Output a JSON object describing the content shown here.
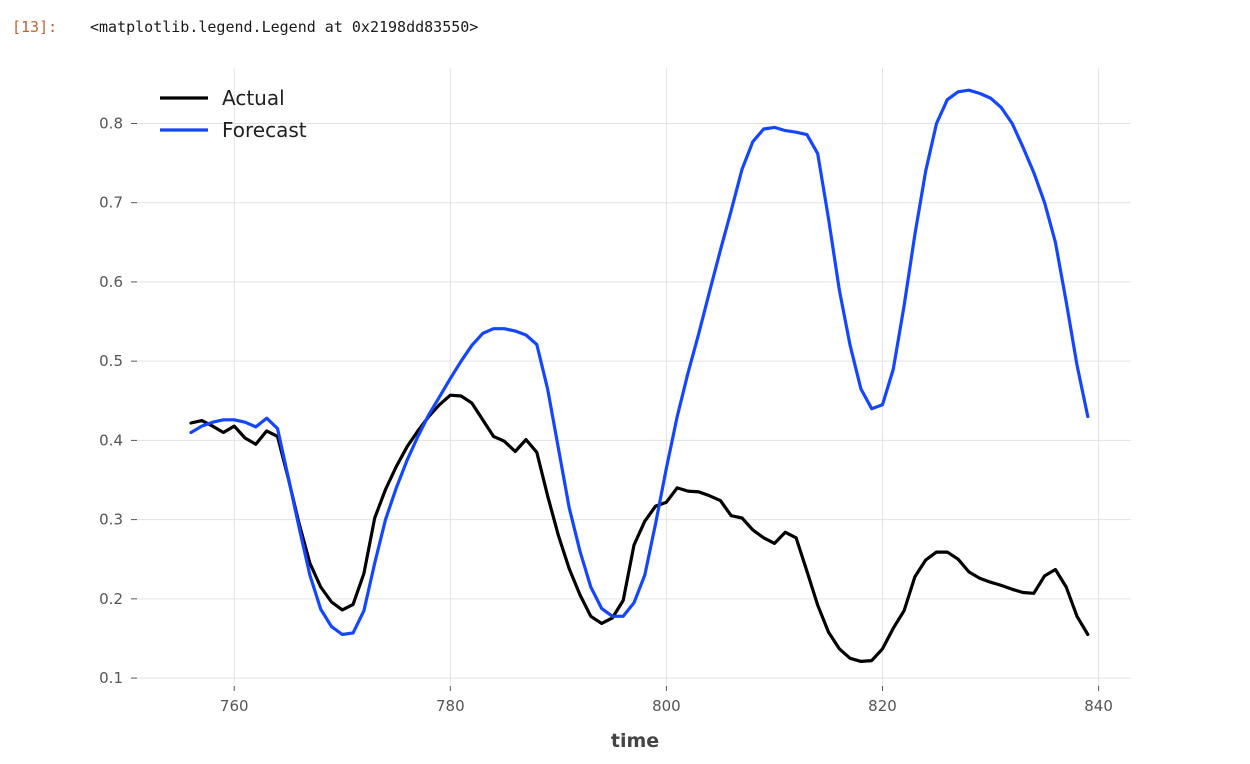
{
  "cell": {
    "prompt": "[13]:",
    "output": "<matplotlib.legend.Legend at 0x2198dd83550>"
  },
  "chart_data": {
    "type": "line",
    "title": "",
    "xlabel": "time",
    "ylabel": "",
    "xlim": [
      751,
      843
    ],
    "ylim": [
      0.09,
      0.87
    ],
    "xticks": [
      760,
      780,
      800,
      820,
      840
    ],
    "yticks": [
      0.1,
      0.2,
      0.3,
      0.4,
      0.5,
      0.6,
      0.7,
      0.8
    ],
    "grid": true,
    "legend": "top-left",
    "x": [
      756,
      757,
      758,
      759,
      760,
      761,
      762,
      763,
      764,
      765,
      766,
      767,
      768,
      769,
      770,
      771,
      772,
      773,
      774,
      775,
      776,
      777,
      778,
      779,
      780,
      781,
      782,
      783,
      784,
      785,
      786,
      787,
      788,
      789,
      790,
      791,
      792,
      793,
      794,
      795,
      796,
      797,
      798,
      799,
      800,
      801,
      802,
      803,
      804,
      805,
      806,
      807,
      808,
      809,
      810,
      811,
      812,
      813,
      814,
      815,
      816,
      817,
      818,
      819,
      820,
      821,
      822,
      823,
      824,
      825,
      826,
      827,
      828,
      829,
      830,
      831,
      832,
      833,
      834,
      835,
      836,
      837,
      838,
      839
    ],
    "series": [
      {
        "name": "Actual",
        "color": "#000000",
        "values": [
          0.422,
          0.425,
          0.418,
          0.41,
          0.418,
          0.403,
          0.395,
          0.412,
          0.405,
          0.352,
          0.295,
          0.245,
          0.215,
          0.196,
          0.186,
          0.193,
          0.232,
          0.302,
          0.338,
          0.367,
          0.392,
          0.412,
          0.43,
          0.445,
          0.457,
          0.456,
          0.447,
          0.426,
          0.405,
          0.399,
          0.386,
          0.401,
          0.385,
          0.33,
          0.28,
          0.238,
          0.205,
          0.178,
          0.169,
          0.176,
          0.198,
          0.268,
          0.298,
          0.317,
          0.322,
          0.34,
          0.336,
          0.335,
          0.33,
          0.324,
          0.305,
          0.302,
          0.287,
          0.277,
          0.27,
          0.284,
          0.277,
          0.235,
          0.192,
          0.158,
          0.137,
          0.125,
          0.121,
          0.122,
          0.137,
          0.163,
          0.185,
          0.228,
          0.249,
          0.259,
          0.259,
          0.25,
          0.234,
          0.226,
          0.221,
          0.217,
          0.212,
          0.208,
          0.207,
          0.229,
          0.237,
          0.215,
          0.178,
          0.155
        ]
      },
      {
        "name": "Forecast",
        "color": "#1446ff",
        "values": [
          0.41,
          0.418,
          0.423,
          0.426,
          0.426,
          0.423,
          0.417,
          0.428,
          0.415,
          0.353,
          0.29,
          0.23,
          0.187,
          0.165,
          0.155,
          0.157,
          0.185,
          0.245,
          0.3,
          0.34,
          0.375,
          0.405,
          0.432,
          0.455,
          0.478,
          0.5,
          0.52,
          0.535,
          0.541,
          0.541,
          0.538,
          0.533,
          0.521,
          0.465,
          0.39,
          0.315,
          0.26,
          0.215,
          0.188,
          0.178,
          0.178,
          0.195,
          0.23,
          0.295,
          0.365,
          0.43,
          0.485,
          0.535,
          0.588,
          0.64,
          0.69,
          0.742,
          0.777,
          0.793,
          0.795,
          0.791,
          0.789,
          0.786,
          0.762,
          0.68,
          0.59,
          0.52,
          0.465,
          0.44,
          0.445,
          0.49,
          0.57,
          0.66,
          0.74,
          0.8,
          0.83,
          0.84,
          0.842,
          0.838,
          0.832,
          0.82,
          0.8,
          0.77,
          0.738,
          0.7,
          0.65,
          0.575,
          0.495,
          0.43
        ]
      }
    ]
  }
}
